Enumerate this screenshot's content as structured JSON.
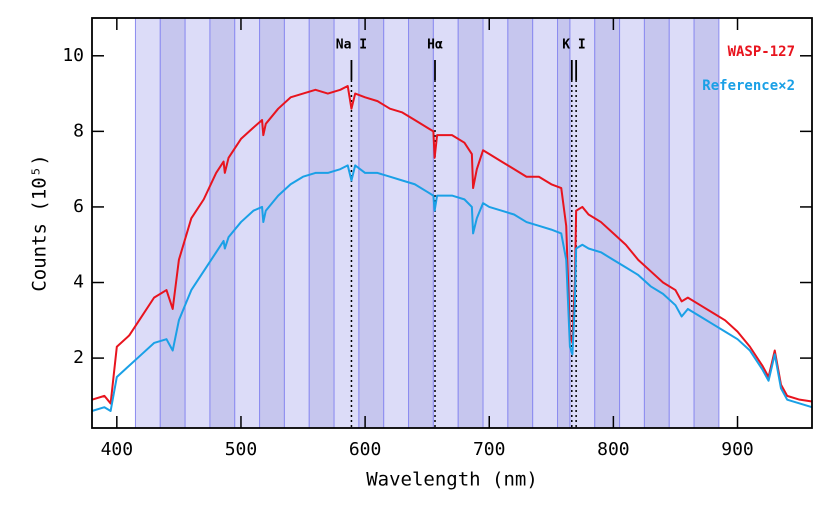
{
  "chart_data": {
    "type": "line",
    "x_label": "Wavelength (nm)",
    "y_label": "Counts (10⁵)",
    "xlim": [
      380,
      960
    ],
    "ylim": [
      0.15,
      11
    ],
    "xticks": [
      400,
      500,
      600,
      700,
      800,
      900
    ],
    "yticks": [
      2,
      4,
      6,
      8,
      10
    ],
    "bands": [
      415,
      435,
      455,
      475,
      495,
      515,
      535,
      555,
      575,
      595,
      615,
      635,
      655,
      675,
      695,
      715,
      735,
      755,
      765,
      785,
      805,
      825,
      845,
      865,
      885
    ],
    "annotations": [
      {
        "text": "Na I",
        "x": [
          589
        ]
      },
      {
        "text": "Hα",
        "x": [
          656.3
        ]
      },
      {
        "text": "K I",
        "x": [
          766.5,
          770
        ]
      }
    ],
    "x": [
      380,
      390,
      395,
      400,
      410,
      420,
      430,
      440,
      445,
      450,
      460,
      470,
      480,
      486,
      487,
      490,
      500,
      510,
      517,
      518,
      520,
      530,
      540,
      550,
      560,
      570,
      580,
      586,
      589,
      592,
      600,
      610,
      620,
      630,
      640,
      650,
      655,
      656,
      658,
      660,
      670,
      680,
      686,
      687,
      690,
      695,
      700,
      710,
      720,
      730,
      740,
      750,
      758,
      762,
      765,
      767,
      769,
      770,
      775,
      780,
      790,
      800,
      810,
      820,
      830,
      840,
      850,
      855,
      860,
      870,
      880,
      890,
      900,
      910,
      920,
      925,
      930,
      935,
      940,
      950,
      960
    ],
    "series": [
      {
        "name": "WASP-127",
        "color": "#e8141e",
        "values": [
          0.9,
          1.0,
          0.8,
          2.3,
          2.6,
          3.1,
          3.6,
          3.8,
          3.3,
          4.6,
          5.7,
          6.2,
          6.9,
          7.2,
          6.9,
          7.3,
          7.8,
          8.1,
          8.3,
          7.9,
          8.2,
          8.6,
          8.9,
          9.0,
          9.1,
          9.0,
          9.1,
          9.2,
          8.6,
          9.0,
          8.9,
          8.8,
          8.6,
          8.5,
          8.3,
          8.1,
          8.0,
          7.3,
          7.9,
          7.9,
          7.9,
          7.7,
          7.4,
          6.5,
          7.0,
          7.5,
          7.4,
          7.2,
          7.0,
          6.8,
          6.8,
          6.6,
          6.5,
          5.5,
          2.6,
          2.4,
          4.0,
          5.9,
          6.0,
          5.8,
          5.6,
          5.3,
          5.0,
          4.6,
          4.3,
          4.0,
          3.8,
          3.5,
          3.6,
          3.4,
          3.2,
          3.0,
          2.7,
          2.3,
          1.8,
          1.5,
          2.2,
          1.3,
          1.0,
          0.9,
          0.85
        ]
      },
      {
        "name": "Reference×2",
        "color": "#1aa0e6",
        "values": [
          0.6,
          0.7,
          0.6,
          1.5,
          1.8,
          2.1,
          2.4,
          2.5,
          2.2,
          3.0,
          3.8,
          4.3,
          4.8,
          5.1,
          4.9,
          5.2,
          5.6,
          5.9,
          6.0,
          5.6,
          5.9,
          6.3,
          6.6,
          6.8,
          6.9,
          6.9,
          7.0,
          7.1,
          6.7,
          7.1,
          6.9,
          6.9,
          6.8,
          6.7,
          6.6,
          6.4,
          6.3,
          5.9,
          6.3,
          6.3,
          6.3,
          6.2,
          6.0,
          5.3,
          5.7,
          6.1,
          6.0,
          5.9,
          5.8,
          5.6,
          5.5,
          5.4,
          5.3,
          4.6,
          2.3,
          2.1,
          3.5,
          4.9,
          5.0,
          4.9,
          4.8,
          4.6,
          4.4,
          4.2,
          3.9,
          3.7,
          3.4,
          3.1,
          3.3,
          3.1,
          2.9,
          2.7,
          2.5,
          2.2,
          1.7,
          1.4,
          2.1,
          1.2,
          0.9,
          0.8,
          0.7
        ]
      }
    ]
  }
}
